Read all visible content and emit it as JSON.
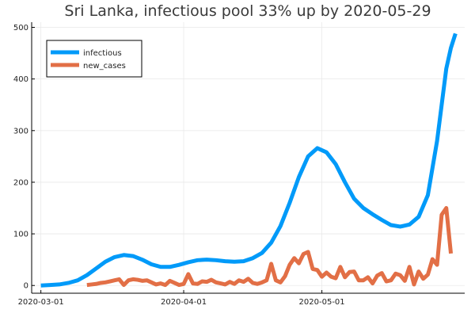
{
  "chart_data": {
    "type": "line",
    "title": "Sri Lanka, infectious pool 33% up by 2020-05-29",
    "xlabel": "",
    "ylabel": "",
    "x_tick_labels": [
      "2020-03-01",
      "2020-04-01",
      "2020-05-01"
    ],
    "y_tick_labels": [
      "0",
      "100",
      "200",
      "300",
      "400",
      "500"
    ],
    "xlim": [
      "2020-02-28",
      "2020-06-01"
    ],
    "ylim": [
      -15,
      510
    ],
    "grid": true,
    "legend_position": "top-left",
    "series": [
      {
        "name": "infectious",
        "color": "#009af9",
        "points": [
          [
            "2020-03-01",
            0
          ],
          [
            "2020-03-03",
            1
          ],
          [
            "2020-03-05",
            2
          ],
          [
            "2020-03-07",
            5
          ],
          [
            "2020-03-09",
            10
          ],
          [
            "2020-03-11",
            20
          ],
          [
            "2020-03-13",
            33
          ],
          [
            "2020-03-15",
            46
          ],
          [
            "2020-03-17",
            55
          ],
          [
            "2020-03-19",
            59
          ],
          [
            "2020-03-21",
            57
          ],
          [
            "2020-03-23",
            50
          ],
          [
            "2020-03-25",
            41
          ],
          [
            "2020-03-27",
            36
          ],
          [
            "2020-03-29",
            36
          ],
          [
            "2020-03-31",
            40
          ],
          [
            "2020-04-02",
            45
          ],
          [
            "2020-04-04",
            49
          ],
          [
            "2020-04-06",
            50
          ],
          [
            "2020-04-08",
            49
          ],
          [
            "2020-04-10",
            47
          ],
          [
            "2020-04-12",
            46
          ],
          [
            "2020-04-14",
            47
          ],
          [
            "2020-04-16",
            53
          ],
          [
            "2020-04-18",
            63
          ],
          [
            "2020-04-20",
            83
          ],
          [
            "2020-04-22",
            115
          ],
          [
            "2020-04-24",
            160
          ],
          [
            "2020-04-26",
            210
          ],
          [
            "2020-04-28",
            250
          ],
          [
            "2020-04-30",
            266
          ],
          [
            "2020-05-02",
            258
          ],
          [
            "2020-05-04",
            235
          ],
          [
            "2020-05-06",
            200
          ],
          [
            "2020-05-08",
            168
          ],
          [
            "2020-05-10",
            150
          ],
          [
            "2020-05-12",
            138
          ],
          [
            "2020-05-14",
            127
          ],
          [
            "2020-05-16",
            117
          ],
          [
            "2020-05-18",
            114
          ],
          [
            "2020-05-20",
            118
          ],
          [
            "2020-05-22",
            133
          ],
          [
            "2020-05-24",
            175
          ],
          [
            "2020-05-26",
            280
          ],
          [
            "2020-05-28",
            420
          ],
          [
            "2020-05-29",
            460
          ],
          [
            "2020-05-30",
            488
          ]
        ]
      },
      {
        "name": "new_cases",
        "color": "#e26f46",
        "points": [
          [
            "2020-03-11",
            1
          ],
          [
            "2020-03-12",
            2
          ],
          [
            "2020-03-13",
            3
          ],
          [
            "2020-03-14",
            5
          ],
          [
            "2020-03-15",
            6
          ],
          [
            "2020-03-16",
            8
          ],
          [
            "2020-03-17",
            10
          ],
          [
            "2020-03-18",
            12
          ],
          [
            "2020-03-19",
            1
          ],
          [
            "2020-03-20",
            10
          ],
          [
            "2020-03-21",
            12
          ],
          [
            "2020-03-22",
            11
          ],
          [
            "2020-03-23",
            9
          ],
          [
            "2020-03-24",
            10
          ],
          [
            "2020-03-25",
            6
          ],
          [
            "2020-03-26",
            2
          ],
          [
            "2020-03-27",
            4
          ],
          [
            "2020-03-28",
            1
          ],
          [
            "2020-03-29",
            9
          ],
          [
            "2020-03-30",
            5
          ],
          [
            "2020-03-31",
            1
          ],
          [
            "2020-04-01",
            3
          ],
          [
            "2020-04-02",
            22
          ],
          [
            "2020-04-03",
            4
          ],
          [
            "2020-04-04",
            3
          ],
          [
            "2020-04-05",
            8
          ],
          [
            "2020-04-06",
            7
          ],
          [
            "2020-04-07",
            11
          ],
          [
            "2020-04-08",
            6
          ],
          [
            "2020-04-09",
            4
          ],
          [
            "2020-04-10",
            2
          ],
          [
            "2020-04-11",
            7
          ],
          [
            "2020-04-12",
            3
          ],
          [
            "2020-04-13",
            10
          ],
          [
            "2020-04-14",
            7
          ],
          [
            "2020-04-15",
            13
          ],
          [
            "2020-04-16",
            5
          ],
          [
            "2020-04-17",
            3
          ],
          [
            "2020-04-18",
            6
          ],
          [
            "2020-04-19",
            10
          ],
          [
            "2020-04-20",
            42
          ],
          [
            "2020-04-21",
            10
          ],
          [
            "2020-04-22",
            6
          ],
          [
            "2020-04-23",
            18
          ],
          [
            "2020-04-24",
            40
          ],
          [
            "2020-04-25",
            53
          ],
          [
            "2020-04-26",
            43
          ],
          [
            "2020-04-27",
            61
          ],
          [
            "2020-04-28",
            65
          ],
          [
            "2020-04-29",
            32
          ],
          [
            "2020-04-30",
            30
          ],
          [
            "2020-05-01",
            17
          ],
          [
            "2020-05-02",
            25
          ],
          [
            "2020-05-03",
            17
          ],
          [
            "2020-05-04",
            14
          ],
          [
            "2020-05-05",
            36
          ],
          [
            "2020-05-06",
            16
          ],
          [
            "2020-05-07",
            26
          ],
          [
            "2020-05-08",
            27
          ],
          [
            "2020-05-09",
            10
          ],
          [
            "2020-05-10",
            10
          ],
          [
            "2020-05-11",
            16
          ],
          [
            "2020-05-12",
            4
          ],
          [
            "2020-05-13",
            19
          ],
          [
            "2020-05-14",
            24
          ],
          [
            "2020-05-15",
            8
          ],
          [
            "2020-05-16",
            10
          ],
          [
            "2020-05-17",
            23
          ],
          [
            "2020-05-18",
            20
          ],
          [
            "2020-05-19",
            9
          ],
          [
            "2020-05-20",
            36
          ],
          [
            "2020-05-21",
            2
          ],
          [
            "2020-05-22",
            27
          ],
          [
            "2020-05-23",
            13
          ],
          [
            "2020-05-24",
            21
          ],
          [
            "2020-05-25",
            51
          ],
          [
            "2020-05-26",
            40
          ],
          [
            "2020-05-27",
            137
          ],
          [
            "2020-05-28",
            150
          ],
          [
            "2020-05-29",
            62
          ]
        ]
      }
    ]
  }
}
